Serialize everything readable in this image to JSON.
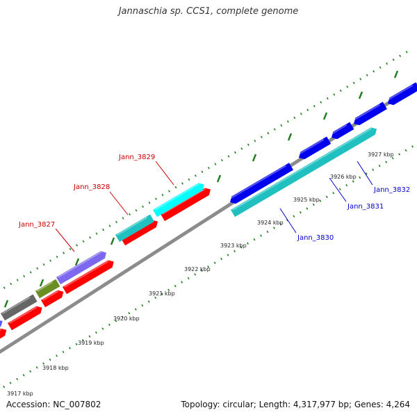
{
  "title": "Jannaschia sp. CCS1, complete genome",
  "footer": {
    "accession": "Accession: NC_007802",
    "topology": "Topology: circular; Length: 4,317,977 bp; Genes: 4,264"
  },
  "colors": {
    "background": "#ffffff",
    "backbone": "#8c8c8c",
    "ticks": "#1e7d1e",
    "tick_label": "#222222",
    "forward_label": "#cc0000",
    "reverse_label": "#0000cc"
  },
  "kbp_labels": [
    "3917 kbp",
    "3918 kbp",
    "3919 kbp",
    "3920 kbp",
    "3921 kbp",
    "3922 kbp",
    "3923 kbp",
    "3924 kbp",
    "3925 kbp",
    "3926 kbp",
    "3927 kbp"
  ],
  "gene_labels": [
    {
      "text": "Jann_3827",
      "strand": "forward"
    },
    {
      "text": "Jann_3828",
      "strand": "forward"
    },
    {
      "text": "Jann_3829",
      "strand": "forward"
    },
    {
      "text": "Jann_3830",
      "strand": "reverse"
    },
    {
      "text": "Jann_3831",
      "strand": "reverse"
    },
    {
      "text": "Jann_3832",
      "strand": "reverse"
    }
  ]
}
